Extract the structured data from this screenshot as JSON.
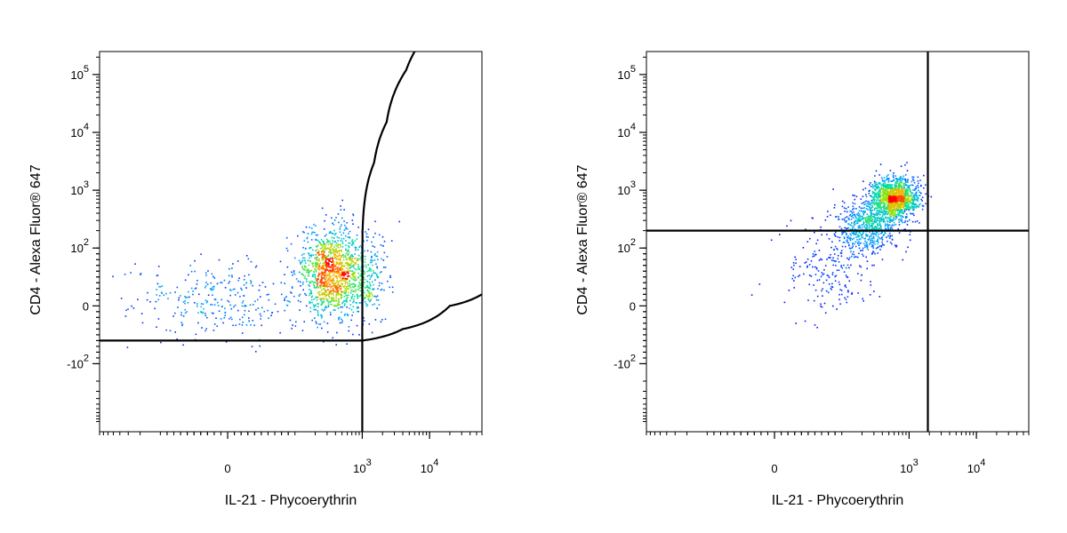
{
  "chart_data": [
    {
      "type": "scatter",
      "subtype": "flow-cytometry-density-dot-plot",
      "xlabel": "IL-21 - Phycoerythrin",
      "ylabel": "CD4 - Alexa Fluor® 647",
      "x_scale": "biexponential",
      "y_scale": "biexponential",
      "xlim": [
        -800,
        60000
      ],
      "ylim": [
        -1500,
        250000
      ],
      "x_ticks": [
        {
          "value": 0,
          "base": "0",
          "exp": ""
        },
        {
          "value": 1000,
          "base": "10",
          "exp": "3"
        },
        {
          "value": 10000,
          "base": "10",
          "exp": "4"
        }
      ],
      "y_ticks": [
        {
          "value": -100,
          "base": "-10",
          "exp": "2"
        },
        {
          "value": 0,
          "base": "0",
          "exp": ""
        },
        {
          "value": 100,
          "base": "10",
          "exp": "2"
        },
        {
          "value": 1000,
          "base": "10",
          "exp": "3"
        },
        {
          "value": 10000,
          "base": "10",
          "exp": "4"
        },
        {
          "value": 100000,
          "base": "10",
          "exp": "5"
        }
      ],
      "color_scale": [
        "#0000ff",
        "#00a0ff",
        "#00e0a0",
        "#a0e000",
        "#ffb000",
        "#ff0000"
      ],
      "populations": [
        {
          "x_center": 0,
          "y_center": 10,
          "x_spread": 100,
          "y_spread": 40,
          "count": 320
        },
        {
          "x_center": 350,
          "y_center": 60,
          "x_spread": 350,
          "y_spread": 70,
          "count": 1200
        },
        {
          "x_center": 1100,
          "y_center": 50,
          "x_spread": 700,
          "y_spread": 60,
          "count": 260
        }
      ],
      "gates": [
        {
          "kind": "curve",
          "points": [
            [
              -800,
              -60
            ],
            [
              1000,
              -60
            ],
            [
              4000,
              -40
            ],
            [
              20000,
              0
            ],
            [
              60000,
              20
            ]
          ]
        },
        {
          "kind": "curve",
          "points": [
            [
              1000,
              -60
            ],
            [
              1010,
              200
            ],
            [
              1050,
              450
            ],
            [
              1500,
              3000
            ],
            [
              2300,
              15000
            ],
            [
              4500,
              120000
            ],
            [
              6000,
              250000
            ]
          ]
        },
        {
          "kind": "vertical-line",
          "x": 1000,
          "y_from": -1500,
          "y_to": -60
        }
      ]
    },
    {
      "type": "scatter",
      "subtype": "flow-cytometry-density-dot-plot",
      "xlabel": "IL-21 - Phycoerythrin",
      "ylabel": "CD4 - Alexa Fluor® 647",
      "x_scale": "biexponential",
      "y_scale": "biexponential",
      "xlim": [
        -800,
        60000
      ],
      "ylim": [
        -1500,
        250000
      ],
      "x_ticks": [
        {
          "value": 0,
          "base": "0",
          "exp": ""
        },
        {
          "value": 1000,
          "base": "10",
          "exp": "3"
        },
        {
          "value": 10000,
          "base": "10",
          "exp": "4"
        }
      ],
      "y_ticks": [
        {
          "value": -100,
          "base": "-10",
          "exp": "2"
        },
        {
          "value": 0,
          "base": "0",
          "exp": ""
        },
        {
          "value": 100,
          "base": "10",
          "exp": "2"
        },
        {
          "value": 1000,
          "base": "10",
          "exp": "3"
        },
        {
          "value": 10000,
          "base": "10",
          "exp": "4"
        },
        {
          "value": 100000,
          "base": "10",
          "exp": "5"
        }
      ],
      "color_scale": [
        "#0000ff",
        "#00a0ff",
        "#00e0a0",
        "#a0e000",
        "#ffb000",
        "#ff0000"
      ],
      "populations": [
        {
          "x_center": 600,
          "y_center": 750,
          "x_spread": 400,
          "y_spread": 500,
          "count": 1300
        },
        {
          "x_center": 250,
          "y_center": 250,
          "x_spread": 250,
          "y_spread": 250,
          "count": 650
        },
        {
          "x_center": 80,
          "y_center": 60,
          "x_spread": 100,
          "y_spread": 60,
          "count": 200
        }
      ],
      "gates": [
        {
          "kind": "quadrant",
          "x": 1900,
          "y": 200
        }
      ]
    }
  ]
}
